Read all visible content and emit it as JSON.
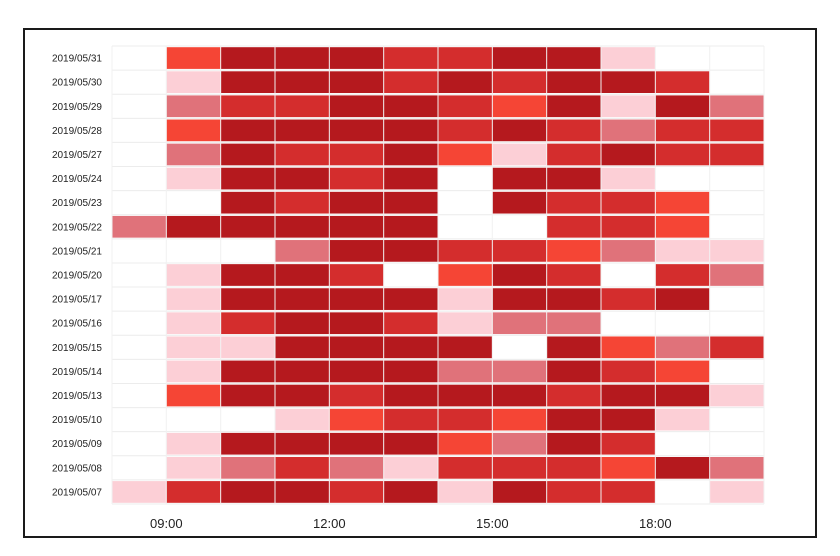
{
  "chart_data": {
    "type": "heatmap",
    "title": "",
    "xlabel": "",
    "ylabel": "",
    "x_tick_labels": [
      "09:00",
      "12:00",
      "15:00",
      "18:00"
    ],
    "x_tick_hours": [
      9,
      12,
      15,
      18
    ],
    "x_range_hours": [
      8,
      20
    ],
    "cell_hours": 1,
    "rows": [
      "2019/05/31",
      "2019/05/30",
      "2019/05/29",
      "2019/05/28",
      "2019/05/27",
      "2019/05/24",
      "2019/05/23",
      "2019/05/22",
      "2019/05/21",
      "2019/05/20",
      "2019/05/17",
      "2019/05/16",
      "2019/05/15",
      "2019/05/14",
      "2019/05/13",
      "2019/05/10",
      "2019/05/09",
      "2019/05/08",
      "2019/05/07"
    ],
    "columns_start": [
      "08:00",
      "09:00",
      "10:00",
      "11:00",
      "12:00",
      "13:00",
      "14:00",
      "15:00",
      "16:00",
      "17:00",
      "18:00",
      "19:00"
    ],
    "intensity_scale": {
      "0": "#ffffff",
      "1": "#fccfd6",
      "2": "#e0727a",
      "3": "#f54535",
      "4": "#d42d2d",
      "5": "#b5191e"
    },
    "values": [
      [
        0,
        3,
        5,
        5,
        5,
        4,
        4,
        5,
        5,
        1,
        0,
        0
      ],
      [
        0,
        1,
        5,
        5,
        5,
        4,
        5,
        4,
        5,
        5,
        4,
        0
      ],
      [
        0,
        2,
        4,
        4,
        5,
        5,
        4,
        3,
        5,
        1,
        5,
        2
      ],
      [
        0,
        3,
        5,
        5,
        5,
        5,
        4,
        5,
        4,
        2,
        4,
        4
      ],
      [
        0,
        2,
        5,
        4,
        4,
        5,
        3,
        1,
        4,
        5,
        4,
        4
      ],
      [
        0,
        1,
        5,
        5,
        4,
        5,
        0,
        5,
        5,
        1,
        0,
        0
      ],
      [
        0,
        0,
        5,
        4,
        5,
        5,
        0,
        5,
        4,
        4,
        3,
        0
      ],
      [
        2,
        5,
        5,
        5,
        5,
        5,
        0,
        0,
        4,
        4,
        3,
        0
      ],
      [
        0,
        0,
        0,
        2,
        5,
        5,
        4,
        4,
        3,
        2,
        1,
        1
      ],
      [
        0,
        1,
        5,
        5,
        4,
        0,
        3,
        5,
        4,
        0,
        4,
        2
      ],
      [
        0,
        1,
        5,
        5,
        5,
        5,
        1,
        5,
        5,
        4,
        5,
        0
      ],
      [
        0,
        1,
        4,
        5,
        5,
        4,
        1,
        2,
        2,
        0,
        0,
        0
      ],
      [
        0,
        1,
        1,
        5,
        5,
        5,
        5,
        0,
        5,
        3,
        2,
        4
      ],
      [
        0,
        1,
        5,
        5,
        5,
        5,
        2,
        2,
        5,
        4,
        3,
        0
      ],
      [
        0,
        3,
        5,
        5,
        4,
        5,
        5,
        5,
        4,
        5,
        5,
        1
      ],
      [
        0,
        0,
        0,
        1,
        3,
        4,
        4,
        3,
        5,
        5,
        1,
        0
      ],
      [
        0,
        1,
        5,
        5,
        5,
        5,
        3,
        2,
        5,
        4,
        0,
        0
      ],
      [
        0,
        1,
        2,
        4,
        2,
        1,
        4,
        4,
        4,
        3,
        5,
        2
      ],
      [
        1,
        4,
        5,
        5,
        4,
        5,
        1,
        5,
        4,
        4,
        0,
        1
      ]
    ]
  }
}
